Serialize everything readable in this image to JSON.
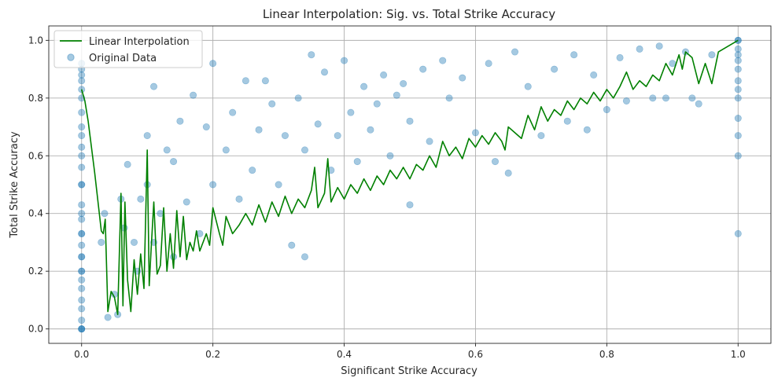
{
  "chart_data": {
    "type": "scatter",
    "title": "Linear Interpolation: Sig. vs. Total Strike Accuracy",
    "xlabel": "Significant Strike Accuracy",
    "ylabel": "Total Strike Accuracy",
    "xlim": [
      -0.05,
      1.05
    ],
    "ylim": [
      -0.05,
      1.05
    ],
    "x_ticks": [
      0.0,
      0.2,
      0.4,
      0.6,
      0.8,
      1.0
    ],
    "x_tick_labels": [
      "0.0",
      "0.2",
      "0.4",
      "0.6",
      "0.8",
      "1.0"
    ],
    "y_ticks": [
      0.0,
      0.2,
      0.4,
      0.6,
      0.8,
      1.0
    ],
    "y_tick_labels": [
      "0.0",
      "0.2",
      "0.4",
      "0.6",
      "0.8",
      "1.0"
    ],
    "grid": true,
    "legend_position": "top-left",
    "legend": [
      {
        "label": "Linear Interpolation",
        "kind": "line",
        "color": "#008000"
      },
      {
        "label": "Original Data",
        "kind": "marker",
        "color": "#1f77b4"
      }
    ],
    "series": [
      {
        "name": "Original Data",
        "kind": "scatter",
        "color": "#1f77b4",
        "alpha": 0.4,
        "points": [
          [
            0.0,
            0.0
          ],
          [
            0.0,
            0.0
          ],
          [
            0.0,
            0.0
          ],
          [
            0.0,
            0.03
          ],
          [
            0.0,
            0.07
          ],
          [
            0.0,
            0.1
          ],
          [
            0.0,
            0.14
          ],
          [
            0.0,
            0.17
          ],
          [
            0.0,
            0.2
          ],
          [
            0.0,
            0.2
          ],
          [
            0.0,
            0.25
          ],
          [
            0.0,
            0.25
          ],
          [
            0.0,
            0.29
          ],
          [
            0.0,
            0.33
          ],
          [
            0.0,
            0.33
          ],
          [
            0.0,
            0.38
          ],
          [
            0.0,
            0.4
          ],
          [
            0.0,
            0.43
          ],
          [
            0.0,
            0.5
          ],
          [
            0.0,
            0.5
          ],
          [
            0.0,
            0.56
          ],
          [
            0.0,
            0.6
          ],
          [
            0.0,
            0.63
          ],
          [
            0.0,
            0.67
          ],
          [
            0.0,
            0.7
          ],
          [
            0.0,
            0.75
          ],
          [
            0.0,
            0.8
          ],
          [
            0.0,
            0.83
          ],
          [
            0.0,
            0.86
          ],
          [
            0.0,
            0.88
          ],
          [
            0.0,
            0.9
          ],
          [
            0.0,
            0.92
          ],
          [
            1.0,
            1.0
          ],
          [
            1.0,
            1.0
          ],
          [
            1.0,
            0.97
          ],
          [
            1.0,
            0.95
          ],
          [
            1.0,
            0.93
          ],
          [
            1.0,
            0.9
          ],
          [
            1.0,
            0.86
          ],
          [
            1.0,
            0.83
          ],
          [
            1.0,
            0.8
          ],
          [
            1.0,
            0.73
          ],
          [
            1.0,
            0.67
          ],
          [
            1.0,
            0.6
          ],
          [
            1.0,
            0.33
          ],
          [
            0.03,
            0.3
          ],
          [
            0.035,
            0.4
          ],
          [
            0.04,
            0.04
          ],
          [
            0.05,
            0.12
          ],
          [
            0.055,
            0.05
          ],
          [
            0.06,
            0.45
          ],
          [
            0.065,
            0.35
          ],
          [
            0.07,
            0.57
          ],
          [
            0.08,
            0.3
          ],
          [
            0.085,
            0.2
          ],
          [
            0.09,
            0.45
          ],
          [
            0.1,
            0.67
          ],
          [
            0.1,
            0.5
          ],
          [
            0.11,
            0.3
          ],
          [
            0.11,
            0.84
          ],
          [
            0.12,
            0.4
          ],
          [
            0.13,
            0.62
          ],
          [
            0.14,
            0.25
          ],
          [
            0.14,
            0.58
          ],
          [
            0.15,
            0.72
          ],
          [
            0.16,
            0.44
          ],
          [
            0.17,
            0.81
          ],
          [
            0.18,
            0.33
          ],
          [
            0.19,
            0.7
          ],
          [
            0.2,
            0.92
          ],
          [
            0.2,
            0.5
          ],
          [
            0.22,
            0.62
          ],
          [
            0.23,
            0.75
          ],
          [
            0.24,
            0.45
          ],
          [
            0.25,
            0.86
          ],
          [
            0.26,
            0.55
          ],
          [
            0.27,
            0.69
          ],
          [
            0.28,
            0.86
          ],
          [
            0.29,
            0.78
          ],
          [
            0.3,
            0.5
          ],
          [
            0.31,
            0.67
          ],
          [
            0.32,
            0.29
          ],
          [
            0.33,
            0.8
          ],
          [
            0.34,
            0.62
          ],
          [
            0.34,
            0.25
          ],
          [
            0.35,
            0.95
          ],
          [
            0.36,
            0.71
          ],
          [
            0.37,
            0.89
          ],
          [
            0.38,
            0.55
          ],
          [
            0.39,
            0.67
          ],
          [
            0.4,
            0.93
          ],
          [
            0.41,
            0.75
          ],
          [
            0.42,
            0.58
          ],
          [
            0.43,
            0.84
          ],
          [
            0.44,
            0.69
          ],
          [
            0.45,
            0.78
          ],
          [
            0.46,
            0.88
          ],
          [
            0.47,
            0.6
          ],
          [
            0.48,
            0.81
          ],
          [
            0.49,
            0.85
          ],
          [
            0.5,
            0.43
          ],
          [
            0.5,
            0.72
          ],
          [
            0.52,
            0.9
          ],
          [
            0.53,
            0.65
          ],
          [
            0.55,
            0.93
          ],
          [
            0.56,
            0.8
          ],
          [
            0.58,
            0.87
          ],
          [
            0.6,
            0.68
          ],
          [
            0.62,
            0.92
          ],
          [
            0.63,
            0.58
          ],
          [
            0.65,
            0.54
          ],
          [
            0.66,
            0.96
          ],
          [
            0.68,
            0.84
          ],
          [
            0.7,
            0.67
          ],
          [
            0.72,
            0.9
          ],
          [
            0.74,
            0.72
          ],
          [
            0.75,
            0.95
          ],
          [
            0.77,
            0.69
          ],
          [
            0.78,
            0.88
          ],
          [
            0.8,
            0.76
          ],
          [
            0.82,
            0.94
          ],
          [
            0.83,
            0.79
          ],
          [
            0.85,
            0.97
          ],
          [
            0.87,
            0.8
          ],
          [
            0.88,
            0.98
          ],
          [
            0.89,
            0.8
          ],
          [
            0.9,
            0.92
          ],
          [
            0.92,
            0.96
          ],
          [
            0.93,
            0.8
          ],
          [
            0.94,
            0.78
          ],
          [
            0.96,
            0.95
          ]
        ]
      },
      {
        "name": "Linear Interpolation",
        "kind": "line",
        "color": "#008000",
        "points": [
          [
            0.0,
            0.83
          ],
          [
            0.005,
            0.79
          ],
          [
            0.01,
            0.72
          ],
          [
            0.015,
            0.63
          ],
          [
            0.02,
            0.54
          ],
          [
            0.025,
            0.44
          ],
          [
            0.03,
            0.34
          ],
          [
            0.033,
            0.33
          ],
          [
            0.036,
            0.38
          ],
          [
            0.04,
            0.06
          ],
          [
            0.045,
            0.13
          ],
          [
            0.05,
            0.11
          ],
          [
            0.055,
            0.05
          ],
          [
            0.06,
            0.47
          ],
          [
            0.063,
            0.08
          ],
          [
            0.066,
            0.44
          ],
          [
            0.07,
            0.17
          ],
          [
            0.075,
            0.06
          ],
          [
            0.08,
            0.24
          ],
          [
            0.085,
            0.12
          ],
          [
            0.09,
            0.26
          ],
          [
            0.095,
            0.14
          ],
          [
            0.1,
            0.62
          ],
          [
            0.103,
            0.15
          ],
          [
            0.106,
            0.28
          ],
          [
            0.11,
            0.44
          ],
          [
            0.115,
            0.19
          ],
          [
            0.12,
            0.22
          ],
          [
            0.125,
            0.42
          ],
          [
            0.13,
            0.2
          ],
          [
            0.135,
            0.33
          ],
          [
            0.14,
            0.21
          ],
          [
            0.145,
            0.41
          ],
          [
            0.15,
            0.25
          ],
          [
            0.155,
            0.39
          ],
          [
            0.16,
            0.24
          ],
          [
            0.165,
            0.3
          ],
          [
            0.17,
            0.27
          ],
          [
            0.175,
            0.34
          ],
          [
            0.18,
            0.27
          ],
          [
            0.19,
            0.33
          ],
          [
            0.195,
            0.29
          ],
          [
            0.2,
            0.42
          ],
          [
            0.21,
            0.33
          ],
          [
            0.215,
            0.29
          ],
          [
            0.22,
            0.39
          ],
          [
            0.23,
            0.33
          ],
          [
            0.24,
            0.36
          ],
          [
            0.25,
            0.4
          ],
          [
            0.26,
            0.36
          ],
          [
            0.27,
            0.43
          ],
          [
            0.28,
            0.37
          ],
          [
            0.29,
            0.44
          ],
          [
            0.3,
            0.39
          ],
          [
            0.31,
            0.46
          ],
          [
            0.32,
            0.4
          ],
          [
            0.33,
            0.45
          ],
          [
            0.34,
            0.42
          ],
          [
            0.35,
            0.48
          ],
          [
            0.355,
            0.56
          ],
          [
            0.36,
            0.42
          ],
          [
            0.37,
            0.47
          ],
          [
            0.375,
            0.59
          ],
          [
            0.38,
            0.44
          ],
          [
            0.39,
            0.49
          ],
          [
            0.4,
            0.45
          ],
          [
            0.41,
            0.5
          ],
          [
            0.42,
            0.47
          ],
          [
            0.43,
            0.52
          ],
          [
            0.44,
            0.48
          ],
          [
            0.45,
            0.53
          ],
          [
            0.46,
            0.5
          ],
          [
            0.47,
            0.55
          ],
          [
            0.48,
            0.52
          ],
          [
            0.49,
            0.56
          ],
          [
            0.5,
            0.52
          ],
          [
            0.51,
            0.57
          ],
          [
            0.52,
            0.55
          ],
          [
            0.53,
            0.6
          ],
          [
            0.54,
            0.56
          ],
          [
            0.55,
            0.65
          ],
          [
            0.56,
            0.6
          ],
          [
            0.57,
            0.63
          ],
          [
            0.58,
            0.59
          ],
          [
            0.59,
            0.66
          ],
          [
            0.6,
            0.63
          ],
          [
            0.61,
            0.67
          ],
          [
            0.62,
            0.64
          ],
          [
            0.63,
            0.68
          ],
          [
            0.64,
            0.65
          ],
          [
            0.645,
            0.62
          ],
          [
            0.65,
            0.7
          ],
          [
            0.66,
            0.68
          ],
          [
            0.67,
            0.66
          ],
          [
            0.68,
            0.74
          ],
          [
            0.69,
            0.69
          ],
          [
            0.7,
            0.77
          ],
          [
            0.71,
            0.72
          ],
          [
            0.72,
            0.76
          ],
          [
            0.73,
            0.74
          ],
          [
            0.74,
            0.79
          ],
          [
            0.75,
            0.76
          ],
          [
            0.76,
            0.8
          ],
          [
            0.77,
            0.78
          ],
          [
            0.78,
            0.82
          ],
          [
            0.79,
            0.79
          ],
          [
            0.8,
            0.83
          ],
          [
            0.81,
            0.8
          ],
          [
            0.82,
            0.84
          ],
          [
            0.83,
            0.89
          ],
          [
            0.84,
            0.83
          ],
          [
            0.85,
            0.86
          ],
          [
            0.86,
            0.84
          ],
          [
            0.87,
            0.88
          ],
          [
            0.88,
            0.86
          ],
          [
            0.89,
            0.92
          ],
          [
            0.9,
            0.88
          ],
          [
            0.91,
            0.95
          ],
          [
            0.915,
            0.9
          ],
          [
            0.92,
            0.96
          ],
          [
            0.93,
            0.94
          ],
          [
            0.94,
            0.85
          ],
          [
            0.95,
            0.92
          ],
          [
            0.96,
            0.85
          ],
          [
            0.97,
            0.96
          ],
          [
            1.0,
            1.0
          ]
        ]
      }
    ]
  }
}
